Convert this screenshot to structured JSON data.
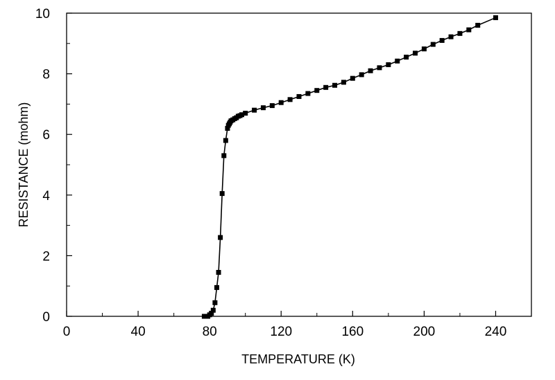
{
  "chart_data": {
    "type": "line",
    "title": "",
    "xlabel": "TEMPERATURE (K)",
    "ylabel": "RESISTANCE (mohm)",
    "xlim": [
      0,
      260
    ],
    "ylim": [
      0,
      10
    ],
    "x_ticks": [
      0,
      40,
      80,
      120,
      160,
      200,
      240
    ],
    "y_ticks": [
      0,
      2,
      4,
      6,
      8,
      10
    ],
    "x_tick_labels": [
      "0",
      "40",
      "80",
      "120",
      "160",
      "200",
      "240"
    ],
    "y_tick_labels": [
      "0",
      "2",
      "4",
      "6",
      "8",
      "10"
    ],
    "grid": false,
    "legend": "none",
    "marker": "square",
    "colors": {
      "line": "#000000",
      "marker": "#000000",
      "axis": "#000000"
    },
    "series": [
      {
        "x": [
          77,
          78,
          79,
          80,
          81,
          82,
          83,
          84,
          85,
          86,
          87,
          88,
          89,
          90,
          90.5,
          91,
          91.5,
          92,
          93,
          94,
          95,
          96,
          97,
          98,
          100,
          105,
          110,
          115,
          120,
          125,
          130,
          135,
          140,
          145,
          150,
          155,
          160,
          165,
          170,
          175,
          180,
          185,
          190,
          195,
          200,
          205,
          210,
          215,
          220,
          225,
          230,
          240
        ],
        "y": [
          0,
          0,
          0,
          0.05,
          0.1,
          0.2,
          0.45,
          0.95,
          1.45,
          2.6,
          4.05,
          5.3,
          5.8,
          6.2,
          6.3,
          6.35,
          6.4,
          6.45,
          6.48,
          6.52,
          6.55,
          6.6,
          6.62,
          6.65,
          6.7,
          6.8,
          6.88,
          6.95,
          7.05,
          7.15,
          7.25,
          7.35,
          7.45,
          7.55,
          7.62,
          7.72,
          7.85,
          7.97,
          8.1,
          8.2,
          8.3,
          8.42,
          8.55,
          8.68,
          8.82,
          8.97,
          9.1,
          9.22,
          9.33,
          9.45,
          9.6,
          9.85
        ]
      }
    ]
  }
}
